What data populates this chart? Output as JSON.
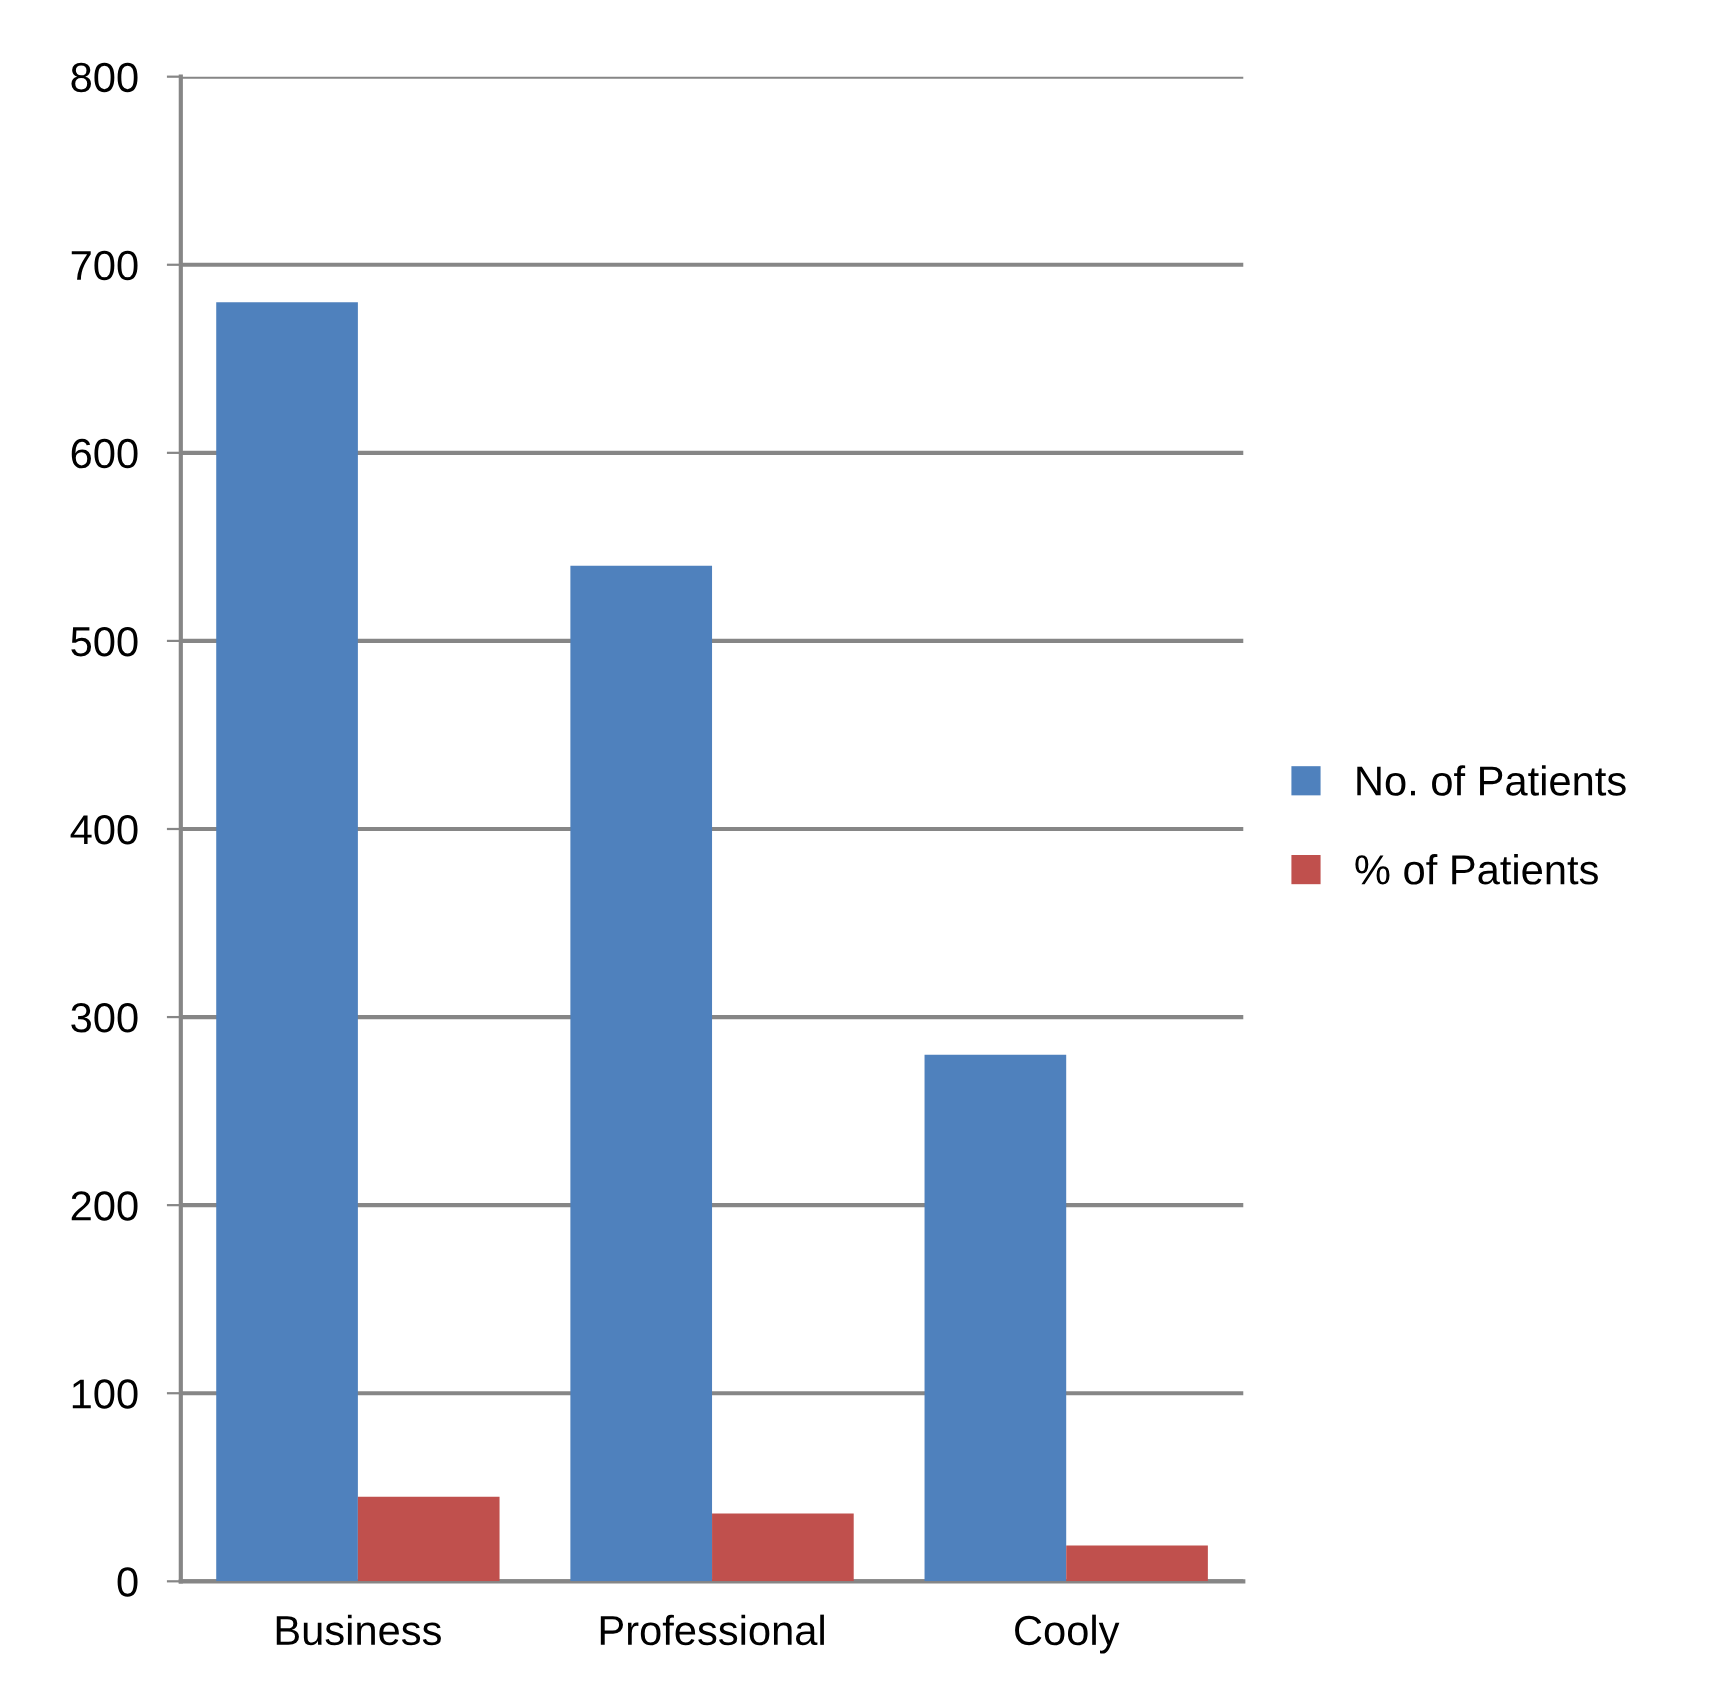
{
  "chart_data": {
    "type": "bar",
    "categories": [
      "Business",
      "Professional",
      "Cooly"
    ],
    "series": [
      {
        "name": "No. of Patients",
        "color": "#4f81bd",
        "values": [
          680,
          540,
          280
        ]
      },
      {
        "name": "% of Patients",
        "color": "#c0504d",
        "values": [
          45,
          36,
          19
        ]
      }
    ],
    "ylim": [
      0,
      800
    ],
    "yticks": [
      0,
      100,
      200,
      300,
      400,
      500,
      600,
      700,
      800
    ],
    "grid": "y",
    "legend": "right"
  }
}
